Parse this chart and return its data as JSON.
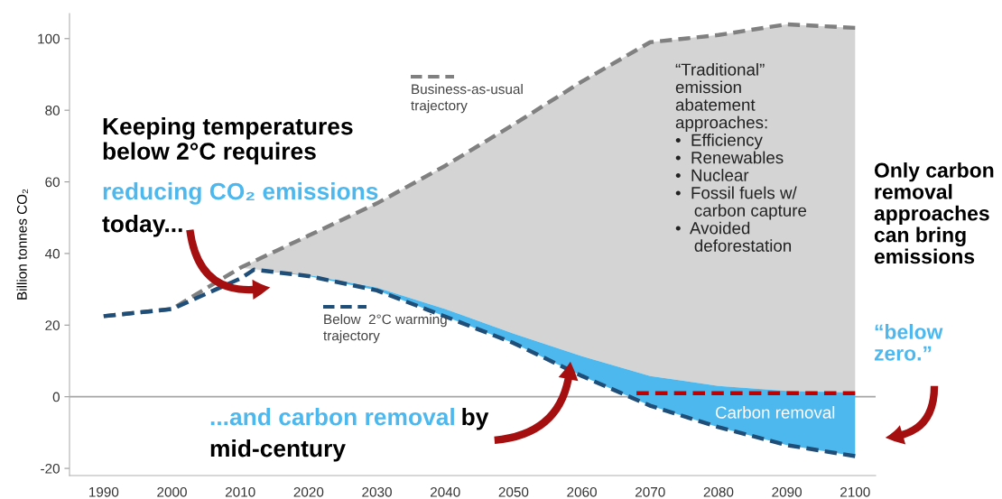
{
  "chart_data": {
    "type": "line",
    "ylabel": "Billion tonnes CO₂",
    "xlim": [
      1985,
      2103
    ],
    "ylim": [
      -22,
      107
    ],
    "xticks": [
      1990,
      2000,
      2010,
      2020,
      2030,
      2040,
      2050,
      2060,
      2070,
      2080,
      2090,
      2100
    ],
    "yticks": [
      -20,
      0,
      20,
      40,
      60,
      80,
      100
    ],
    "grid": false,
    "legend": "top",
    "ref_lines": [
      {
        "axis": "y",
        "value": 0,
        "color": "#a6a6a6",
        "line_style": "solid"
      }
    ],
    "series": [
      {
        "name": "Business-as-usual\ntrajectory",
        "color": "#808080",
        "line_style": "dashed",
        "x": [
          1990,
          2000,
          2010,
          2020,
          2030,
          2040,
          2050,
          2060,
          2070,
          2080,
          2090,
          2100
        ],
        "values": [
          22.5,
          24.5,
          36,
          45,
          54,
          64.5,
          76,
          88,
          99,
          101,
          104,
          103
        ],
        "lower": [
          null,
          null,
          36,
          34,
          30.5,
          24.5,
          17.6,
          11.3,
          5.8,
          3,
          1.6,
          1.2
        ],
        "upper": [
          null,
          null,
          36,
          45,
          54,
          64.5,
          76,
          88,
          99,
          101,
          104,
          103
        ]
      },
      {
        "name": "Below  2°C warming\ntrajectory",
        "color": "#1f4e79",
        "line_style": "dashed",
        "x": [
          1990,
          2000,
          2010,
          2012,
          2020,
          2030,
          2040,
          2050,
          2060,
          2070,
          2080,
          2090,
          2100
        ],
        "values": [
          22.5,
          24.5,
          33,
          35.5,
          33.7,
          29.7,
          22.4,
          15,
          5.8,
          -2.5,
          -8.5,
          -13.5,
          -16.6
        ],
        "lower": [
          null,
          null,
          null,
          35.5,
          33.7,
          29.7,
          22.4,
          15,
          5.8,
          -2.5,
          -8.5,
          -13.5,
          -16.6
        ],
        "upper": [
          null,
          null,
          null,
          35.5,
          34,
          30.5,
          24.5,
          17.6,
          11.3,
          5.8,
          3,
          1.6,
          1.2
        ]
      },
      {
        "color": "#c00000",
        "line_style": "dashed",
        "x": [
          2068,
          2100
        ],
        "values": [
          1,
          1
        ]
      }
    ],
    "annotations": [
      "Keeping temperatures\nbelow 2°C requires",
      "reducing CO₂ emissions",
      "today...",
      "...and carbon removal",
      "by",
      "mid-century",
      "“Traditional”\nemission\nabatement\napproaches:\n•  Efficiency\n•  Renewables\n•  Nuclear\n•  Fossil fuels w/\n    carbon capture\n•  Avoided\n    deforestation",
      "Only carbon\nremoval\napproaches\ncan bring\nemissions",
      "“below\nzero.”",
      "Carbon removal"
    ]
  }
}
